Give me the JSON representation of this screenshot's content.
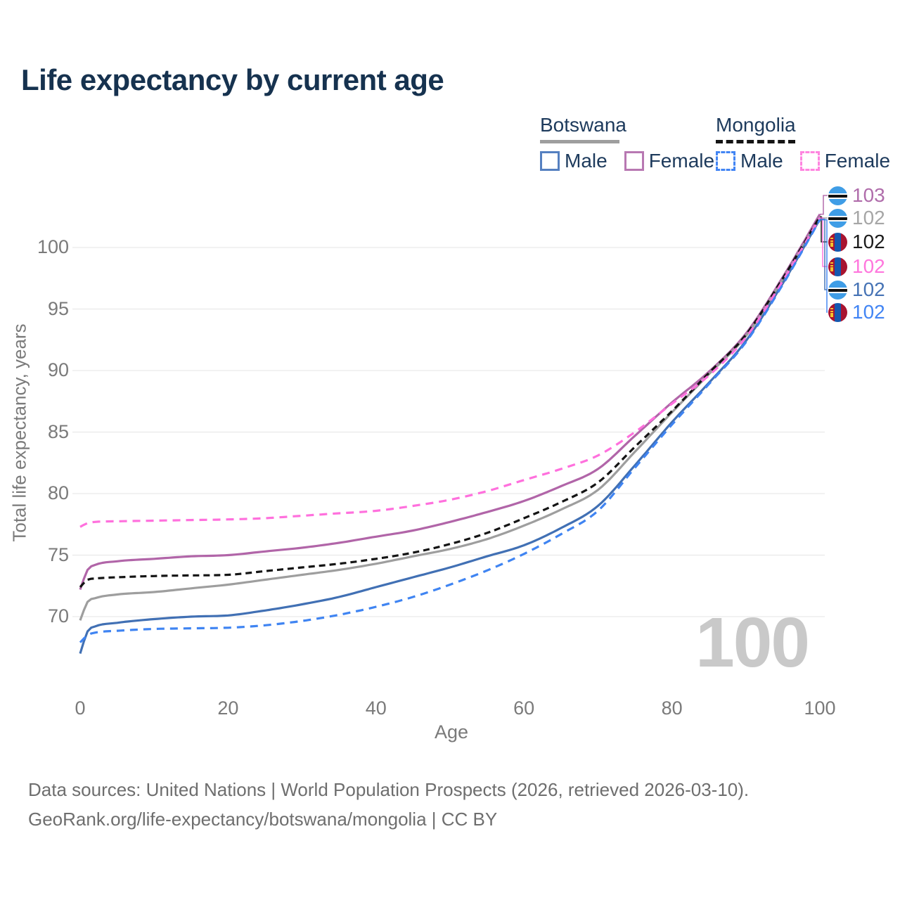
{
  "title": "Life expectancy by current age",
  "watermark": "100",
  "legend": {
    "groups": [
      {
        "label": "Botswana",
        "line_style": "solid",
        "line_color": "#9e9e9e",
        "items": [
          {
            "label": "Male",
            "swatch_color": "#5580c0",
            "swatch_style": "solid"
          },
          {
            "label": "Female",
            "swatch_color": "#b878b2",
            "swatch_style": "solid"
          }
        ]
      },
      {
        "label": "Mongolia",
        "line_style": "dashed",
        "line_color": "#141414",
        "items": [
          {
            "label": "Male",
            "swatch_color": "#4285f4",
            "swatch_style": "dashed"
          },
          {
            "label": "Female",
            "swatch_color": "#ff85e0",
            "swatch_style": "dashed"
          }
        ]
      }
    ]
  },
  "end_labels": [
    {
      "flag": "botswana",
      "series": "Botswana Female",
      "series_index": 0,
      "value": "103",
      "color": "#b06dab"
    },
    {
      "flag": "botswana",
      "series": "Botswana Both sexes",
      "series_index": 1,
      "value": "102",
      "color": "#a6a6a6"
    },
    {
      "flag": "mongolia",
      "series": "Mongolia Both sexes",
      "series_index": 3,
      "value": "102",
      "color": "#1b1b1b"
    },
    {
      "flag": "mongolia",
      "series": "Mongolia Female",
      "series_index": 4,
      "value": "102",
      "color": "#ff77dd"
    },
    {
      "flag": "botswana",
      "series": "Botswana Male",
      "series_index": 2,
      "value": "102",
      "color": "#4673b5"
    },
    {
      "flag": "mongolia",
      "series": "Mongolia Male",
      "series_index": 5,
      "value": "102",
      "color": "#4285f4"
    }
  ],
  "footer": {
    "line1": "Data sources: United Nations | World Population Prospects (2026, retrieved 2026-03-10).",
    "line2": "GeoRank.org/life-expectancy/botswana/mongolia | CC BY"
  },
  "colors": {
    "title_text": "#16324f",
    "axis_text": "#7a7a7a",
    "grid": "#e9e9e9",
    "watermark": "#c9c9c9",
    "footer_text": "#6e6e6e"
  },
  "chart_data": {
    "type": "line",
    "title": "Life expectancy by current age",
    "xlabel": "Age",
    "ylabel": "Total life expectancy, years",
    "xlim": [
      0,
      100
    ],
    "ylim": [
      66,
      103
    ],
    "x_ticks": [
      0,
      20,
      40,
      60,
      80,
      100
    ],
    "y_ticks": [
      70,
      75,
      80,
      85,
      90,
      95,
      100
    ],
    "grid": "horizontal",
    "legend_position": "top-right",
    "ages": [
      0,
      1,
      2,
      5,
      10,
      15,
      20,
      25,
      30,
      35,
      40,
      45,
      50,
      55,
      60,
      65,
      70,
      75,
      80,
      85,
      90,
      95,
      100
    ],
    "series": [
      {
        "name": "Botswana Female",
        "country": "Botswana",
        "sex": "Female",
        "style": "solid",
        "color": "#b165a8",
        "end_label": "103",
        "values": [
          72.2,
          73.8,
          74.2,
          74.5,
          74.7,
          74.9,
          75.0,
          75.3,
          75.6,
          76.0,
          76.5,
          77.0,
          77.7,
          78.5,
          79.4,
          80.6,
          82.0,
          84.7,
          87.4,
          89.9,
          93.0,
          97.6,
          102.7
        ]
      },
      {
        "name": "Botswana Both sexes",
        "country": "Botswana",
        "sex": "Both",
        "style": "solid",
        "color": "#9e9e9e",
        "end_label": "102",
        "values": [
          69.7,
          71.2,
          71.5,
          71.8,
          72.0,
          72.3,
          72.6,
          73.0,
          73.4,
          73.8,
          74.3,
          74.9,
          75.5,
          76.3,
          77.4,
          78.7,
          80.3,
          83.4,
          86.6,
          89.7,
          92.8,
          97.4,
          102.45
        ]
      },
      {
        "name": "Botswana Male",
        "country": "Botswana",
        "sex": "Male",
        "style": "solid",
        "color": "#4170b4",
        "end_label": "102",
        "values": [
          67.0,
          68.8,
          69.2,
          69.5,
          69.8,
          70.0,
          70.1,
          70.5,
          71.0,
          71.6,
          72.4,
          73.2,
          74.0,
          74.9,
          75.8,
          77.2,
          79.0,
          82.3,
          85.8,
          89.0,
          92.4,
          97.1,
          102.3
        ]
      },
      {
        "name": "Mongolia Both sexes",
        "country": "Mongolia",
        "sex": "Both",
        "style": "dashed",
        "color": "#141414",
        "end_label": "102",
        "values": [
          72.4,
          73.0,
          73.1,
          73.2,
          73.3,
          73.35,
          73.4,
          73.7,
          74.0,
          74.3,
          74.7,
          75.2,
          75.9,
          76.8,
          78.0,
          79.3,
          80.9,
          83.8,
          86.7,
          89.8,
          92.9,
          97.5,
          102.5
        ]
      },
      {
        "name": "Mongolia Female",
        "country": "Mongolia",
        "sex": "Female",
        "style": "dashed",
        "color": "#ff70dd",
        "end_label": "102",
        "values": [
          77.3,
          77.6,
          77.7,
          77.75,
          77.8,
          77.85,
          77.9,
          78.0,
          78.2,
          78.4,
          78.6,
          79.0,
          79.5,
          80.2,
          81.1,
          82.0,
          83.1,
          85.0,
          87.3,
          89.6,
          92.7,
          97.3,
          102.4
        ]
      },
      {
        "name": "Mongolia Male",
        "country": "Mongolia",
        "sex": "Male",
        "style": "dashed",
        "color": "#3f84f2",
        "end_label": "102",
        "values": [
          67.9,
          68.5,
          68.7,
          68.85,
          69.0,
          69.05,
          69.1,
          69.3,
          69.65,
          70.15,
          70.8,
          71.6,
          72.6,
          73.75,
          75.1,
          76.7,
          78.6,
          82.1,
          85.6,
          88.9,
          92.3,
          97.0,
          102.25
        ]
      }
    ]
  }
}
